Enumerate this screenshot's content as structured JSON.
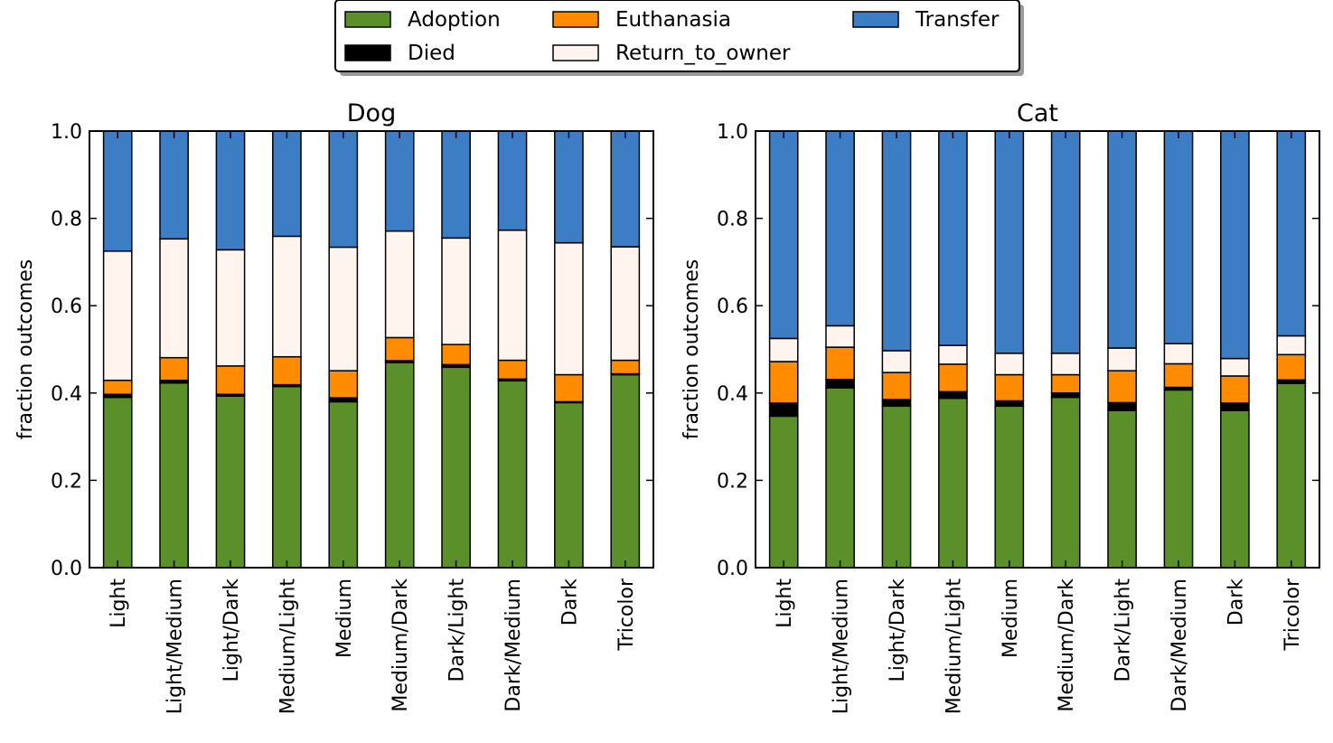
{
  "legend": {
    "items": [
      {
        "name": "Adoption",
        "color": "#5a8f29"
      },
      {
        "name": "Died",
        "color": "#000000"
      },
      {
        "name": "Euthanasia",
        "color": "#ff8c00"
      },
      {
        "name": "Return_to_owner",
        "color": "#fff5ee"
      },
      {
        "name": "Transfer",
        "color": "#3c7dc4"
      }
    ]
  },
  "chart_data": [
    {
      "type": "bar",
      "stacked": true,
      "title": "Dog",
      "ylabel": "fraction outcomes",
      "xlabel": "",
      "ylim": [
        0,
        1
      ],
      "yticks": [
        "0.0",
        "0.2",
        "0.4",
        "0.6",
        "0.8",
        "1.0"
      ],
      "categories": [
        "Light",
        "Light/Medium",
        "Light/Dark",
        "Medium/Light",
        "Medium",
        "Medium/Dark",
        "Dark/Light",
        "Dark/Medium",
        "Dark",
        "Tricolor"
      ],
      "series": [
        {
          "name": "Adoption",
          "color": "#5a8f29",
          "values": [
            0.39,
            0.423,
            0.393,
            0.415,
            0.38,
            0.47,
            0.459,
            0.428,
            0.378,
            0.442
          ]
        },
        {
          "name": "Died",
          "color": "#000000",
          "values": [
            0.007,
            0.006,
            0.004,
            0.004,
            0.009,
            0.004,
            0.006,
            0.004,
            0.002,
            0.002
          ]
        },
        {
          "name": "Euthanasia",
          "color": "#ff8c00",
          "values": [
            0.032,
            0.052,
            0.065,
            0.064,
            0.062,
            0.053,
            0.046,
            0.043,
            0.062,
            0.031
          ]
        },
        {
          "name": "Return_to_owner",
          "color": "#fff5ee",
          "values": [
            0.296,
            0.272,
            0.266,
            0.276,
            0.283,
            0.244,
            0.244,
            0.298,
            0.302,
            0.26
          ]
        },
        {
          "name": "Transfer",
          "color": "#3c7dc4",
          "values": [
            0.275,
            0.247,
            0.272,
            0.241,
            0.266,
            0.229,
            0.245,
            0.227,
            0.256,
            0.265
          ]
        }
      ]
    },
    {
      "type": "bar",
      "stacked": true,
      "title": "Cat",
      "ylabel": "fraction outcomes",
      "xlabel": "",
      "ylim": [
        0,
        1
      ],
      "yticks": [
        "0.0",
        "0.2",
        "0.4",
        "0.6",
        "0.8",
        "1.0"
      ],
      "categories": [
        "Light",
        "Light/Medium",
        "Light/Dark",
        "Medium/Light",
        "Medium",
        "Medium/Dark",
        "Dark/Light",
        "Dark/Medium",
        "Dark",
        "Tricolor"
      ],
      "series": [
        {
          "name": "Adoption",
          "color": "#5a8f29",
          "values": [
            0.347,
            0.412,
            0.37,
            0.388,
            0.37,
            0.39,
            0.36,
            0.407,
            0.36,
            0.422
          ]
        },
        {
          "name": "Died",
          "color": "#000000",
          "values": [
            0.03,
            0.019,
            0.015,
            0.015,
            0.012,
            0.01,
            0.018,
            0.006,
            0.017,
            0.008
          ]
        },
        {
          "name": "Euthanasia",
          "color": "#ff8c00",
          "values": [
            0.095,
            0.074,
            0.062,
            0.063,
            0.06,
            0.042,
            0.073,
            0.054,
            0.062,
            0.058
          ]
        },
        {
          "name": "Return_to_owner",
          "color": "#fff5ee",
          "values": [
            0.053,
            0.049,
            0.05,
            0.043,
            0.049,
            0.049,
            0.052,
            0.046,
            0.04,
            0.043
          ]
        },
        {
          "name": "Transfer",
          "color": "#3c7dc4",
          "values": [
            0.475,
            0.446,
            0.503,
            0.491,
            0.509,
            0.509,
            0.497,
            0.487,
            0.521,
            0.469
          ]
        }
      ]
    }
  ]
}
